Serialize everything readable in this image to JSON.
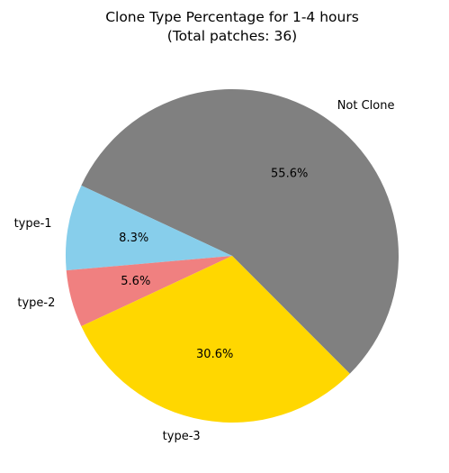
{
  "chart_data": {
    "type": "pie",
    "title": "Clone Type Percentage for 1-4 hours",
    "subtitle": "(Total patches: 36)",
    "slices": [
      {
        "label": "Not Clone",
        "count": 20,
        "pct_label": "55.6%",
        "color": "#808080"
      },
      {
        "label": "type-1",
        "count": 3,
        "pct_label": "8.3%",
        "color": "#87CEEB"
      },
      {
        "label": "type-2",
        "count": 2,
        "pct_label": "5.6%",
        "color": "#F08080"
      },
      {
        "label": "type-3",
        "count": 11,
        "pct_label": "30.6%",
        "color": "#FFD700"
      }
    ],
    "start_angle_deg": -45,
    "direction": "counterclockwise",
    "legend": "none"
  }
}
